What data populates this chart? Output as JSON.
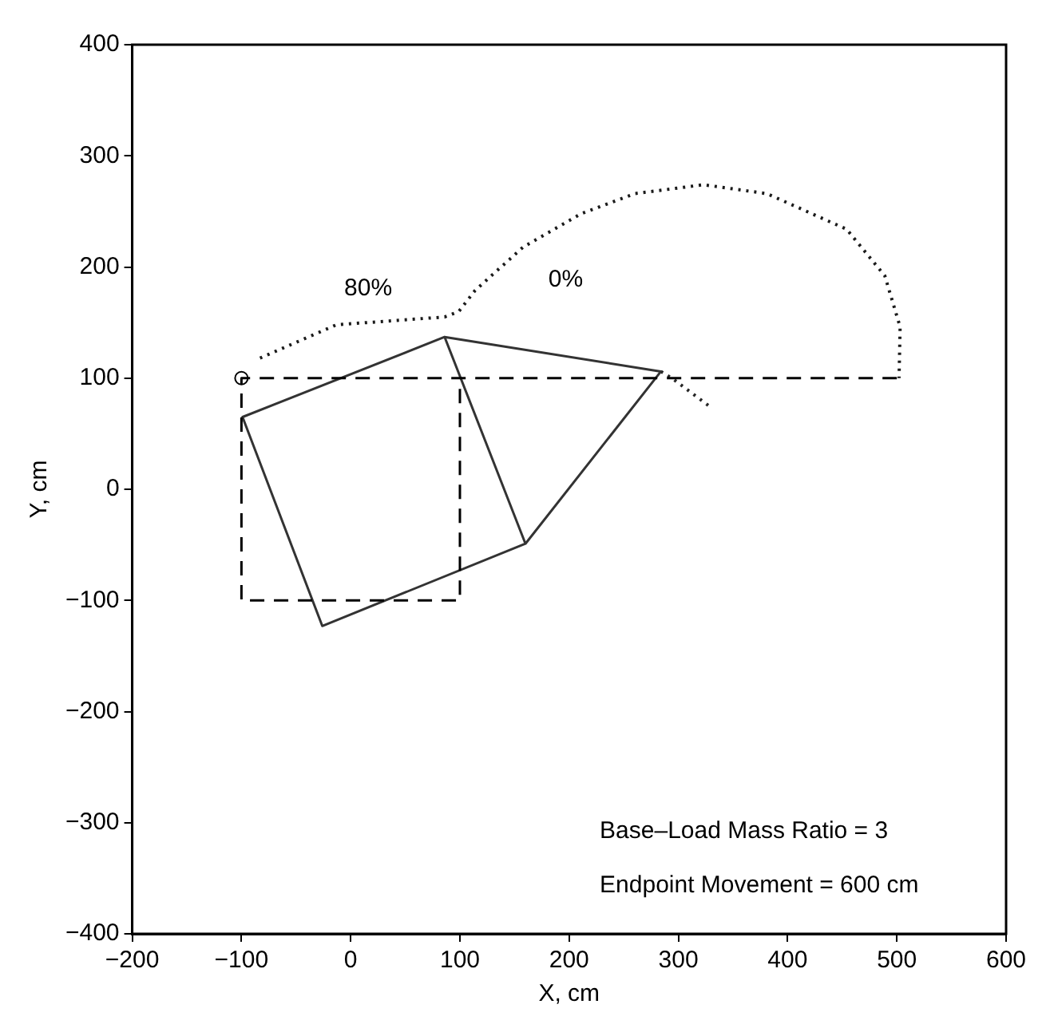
{
  "chart_data": {
    "type": "line",
    "xlabel": "X, cm",
    "ylabel": "Y, cm",
    "xlim": [
      -200,
      600
    ],
    "ylim": [
      -400,
      400
    ],
    "xticks": [
      -200,
      -100,
      0,
      100,
      200,
      300,
      400,
      500,
      600
    ],
    "yticks": [
      -400,
      -300,
      -200,
      -100,
      0,
      100,
      200,
      300,
      400
    ],
    "grid": false,
    "legend": false,
    "series": [
      {
        "color": "#000000",
        "line_style": "dashed",
        "marker": "none",
        "x": [
          500,
          -100,
          -100,
          100,
          100
        ],
        "values": [
          100,
          100,
          -100,
          -100,
          100
        ]
      },
      {
        "color": "#333333",
        "line_style": "solid",
        "marker": "none",
        "x": [
          86,
          -99,
          -26,
          160,
          284,
          86,
          160
        ],
        "values": [
          137,
          65,
          -123,
          -49,
          106,
          137,
          -49
        ]
      },
      {
        "color": "#1a1a1a",
        "line_style": "dotted",
        "marker": "none",
        "x": [
          -83,
          -13,
          86,
          99,
          114,
          158,
          211,
          260,
          323,
          381,
          454,
          489,
          503,
          502
        ],
        "values": [
          118,
          148,
          155,
          160,
          179,
          218,
          248,
          266,
          274,
          266,
          234,
          192,
          146,
          100
        ]
      },
      {
        "color": "#262626",
        "line_style": "dotted",
        "marker": "none",
        "x": [
          284,
          294,
          328
        ],
        "values": [
          106,
          100,
          75
        ]
      },
      {
        "type": "scatter",
        "color": "#000000",
        "marker": "circle",
        "x": [
          -100
        ],
        "values": [
          100
        ]
      }
    ],
    "annotations": [
      "80%",
      "0%",
      "Base–Load Mass Ratio = 3",
      "Endpoint Movement = 600 cm"
    ]
  }
}
